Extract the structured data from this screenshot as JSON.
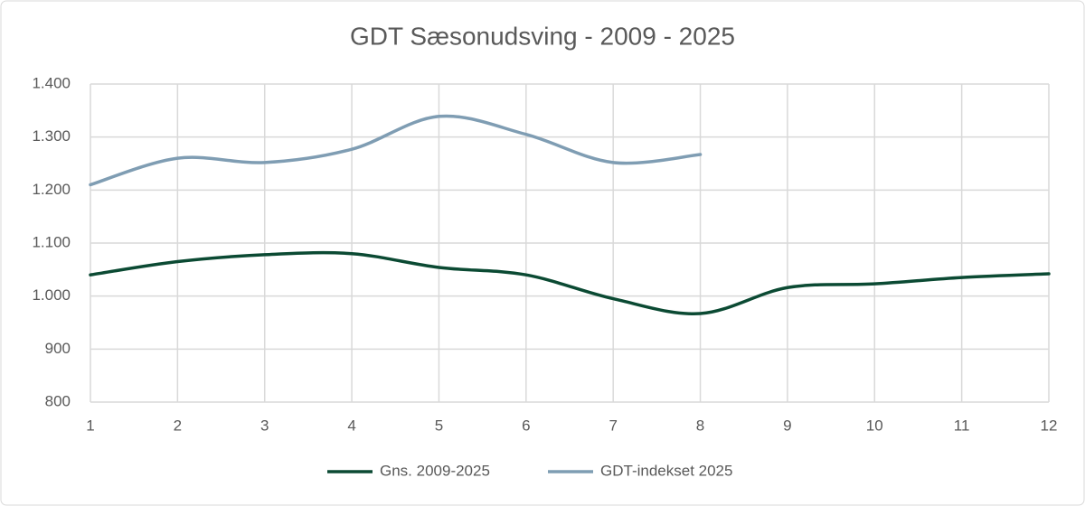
{
  "chart_data": {
    "type": "line",
    "title": "GDT Sæsonudsving - 2009 - 2025",
    "x": [
      1,
      2,
      3,
      4,
      5,
      6,
      7,
      8,
      9,
      10,
      11,
      12
    ],
    "series": [
      {
        "name": "Gns. 2009-2025",
        "color": "#0b4a33",
        "values": [
          1040,
          1065,
          1078,
          1080,
          1054,
          1040,
          995,
          967,
          1016,
          1023,
          1035,
          1042
        ]
      },
      {
        "name": "GDT-indekset 2025",
        "color": "#7f9db3",
        "values": [
          1210,
          1260,
          1252,
          1277,
          1339,
          1305,
          1252,
          1267,
          null,
          null,
          null,
          null
        ]
      }
    ],
    "xlim": [
      1,
      12
    ],
    "xticks": [
      1,
      2,
      3,
      4,
      5,
      6,
      7,
      8,
      9,
      10,
      11,
      12
    ],
    "ylim": [
      800,
      1400
    ],
    "yticks": [
      800,
      900,
      {
        "value": 1000,
        "label": "1.000"
      },
      {
        "value": 1100,
        "label": "1.100"
      },
      {
        "value": 1200,
        "label": "1.200"
      },
      {
        "value": 1300,
        "label": "1.300"
      },
      {
        "value": 1400,
        "label": "1.400"
      }
    ],
    "grid": true,
    "legend": "bottom"
  }
}
